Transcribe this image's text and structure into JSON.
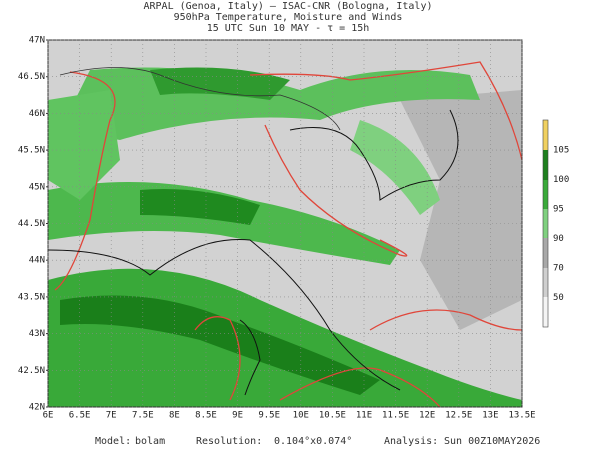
{
  "header": {
    "lines": [
      "ARPAL (Genoa, Italy)  —  ISAC-CNR (Bologna, Italy)",
      "950hPa Temperature, Moisture and Winds",
      "15 UTC Sun 10 MAY  -  τ = 15h"
    ]
  },
  "map": {
    "lat_labels": [
      "47N",
      "46.5N",
      "46N",
      "45.5N",
      "45N",
      "44.5N",
      "44N",
      "43.5N",
      "43N",
      "42.5N",
      "42N"
    ],
    "lon_labels": [
      "6E",
      "6.5E",
      "7E",
      "7.5E",
      "8E",
      "8.5E",
      "9E",
      "9.5E",
      "10E",
      "10.5E",
      "11E",
      "11.5E",
      "12E",
      "12.5E",
      "13E",
      "13.5E"
    ]
  },
  "colorbar": {
    "labels": [
      "105",
      "100",
      "95",
      "90",
      "70",
      "50"
    ]
  },
  "footer": {
    "model_label": "Model:",
    "model": "bolam",
    "resolution_label": "Resolution:",
    "resolution": "0.104°x0.074°",
    "analysis_label": "Analysis:",
    "analysis": "Sun 00Z10MAY2026"
  }
}
